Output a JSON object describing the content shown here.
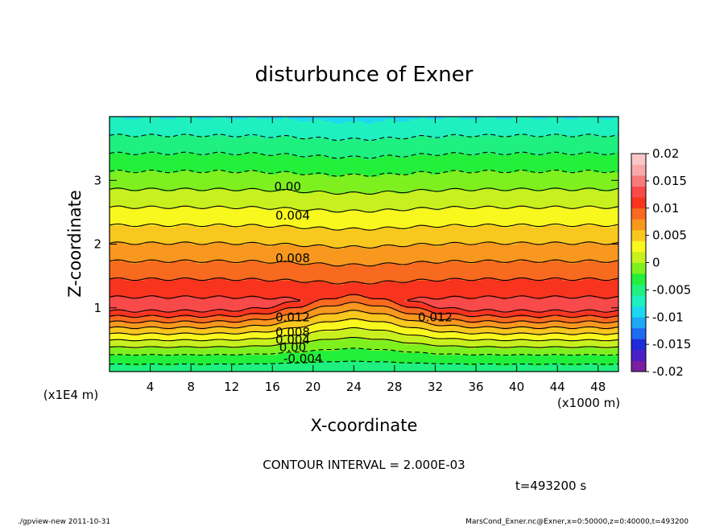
{
  "chart_data": {
    "type": "heatmap",
    "title": "disturbunce of Exner",
    "xlabel": "X-coordinate",
    "ylabel": "Z-coordinate",
    "x_unit": "(x1000 m)",
    "y_unit": "(x1E4 m)",
    "xlim": [
      0,
      50
    ],
    "ylim": [
      0,
      4
    ],
    "x_ticks": [
      4,
      8,
      12,
      16,
      20,
      24,
      28,
      32,
      36,
      40,
      44,
      48
    ],
    "y_ticks": [
      1,
      2,
      3
    ],
    "colorbar": {
      "min": -0.02,
      "max": 0.02,
      "labels": [
        "0.02",
        "0.015",
        "0.01",
        "0.005",
        "0",
        "-0.005",
        "-0.01",
        "-0.015",
        "-0.02"
      ],
      "label_values": [
        0.02,
        0.015,
        0.01,
        0.005,
        0,
        -0.005,
        -0.01,
        -0.015,
        -0.02
      ]
    },
    "contour_labels": [
      {
        "text": "0.00",
        "x": 17.5,
        "z": 2.9
      },
      {
        "text": "0.004",
        "x": 18,
        "z": 2.45
      },
      {
        "text": "0.008",
        "x": 18,
        "z": 1.78
      },
      {
        "text": "0.012",
        "x": 18,
        "z": 0.85
      },
      {
        "text": "0.012",
        "x": 32,
        "z": 0.85
      },
      {
        "text": "0.008",
        "x": 18,
        "z": 0.62
      },
      {
        "text": "0.004",
        "x": 18,
        "z": 0.5
      },
      {
        "text": "0.00",
        "x": 18,
        "z": 0.38
      },
      {
        "text": "-0.004",
        "x": 19,
        "z": 0.2
      }
    ],
    "contour_interval": "CONTOUR INTERVAL = 2.000E-03",
    "time_label": "t=493200 s"
  },
  "footer": {
    "left": "./gpview-new  2011-10-31",
    "right": "MarsCond_Exner.nc@Exner,x=0:50000,z=0:40000,t=493200"
  }
}
